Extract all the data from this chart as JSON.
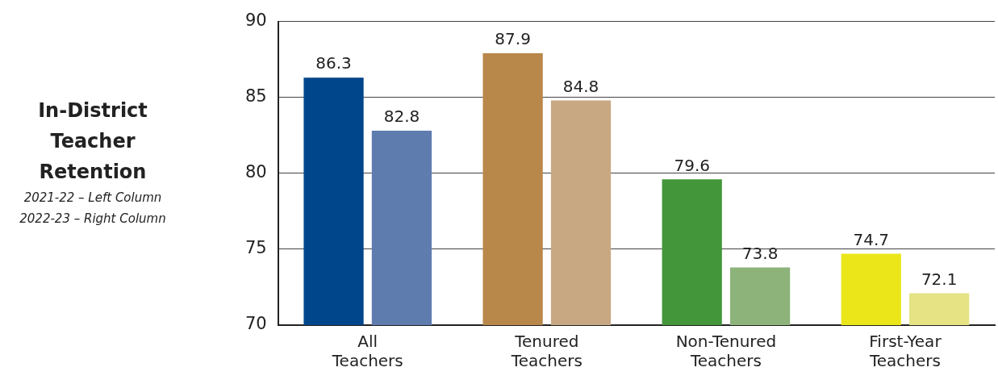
{
  "chart_data": {
    "type": "bar",
    "title": "In-District Teacher Retention",
    "annotations": [
      "2021-22 – Left Column",
      "2022-23 – Right Column"
    ],
    "categories": [
      "All Teachers",
      "Tenured Teachers",
      "Non-Tenured Teachers",
      "First-Year Teachers"
    ],
    "series": [
      {
        "colors": [
          "#00468b",
          "#b8874a",
          "#43973a",
          "#ebe61a"
        ],
        "values": [
          86.3,
          87.9,
          79.6,
          74.7
        ]
      },
      {
        "colors": [
          "#5f7caf",
          "#c8a883",
          "#8db37b",
          "#e5e383"
        ],
        "values": [
          82.8,
          84.8,
          73.8,
          72.1
        ]
      }
    ],
    "ylim": [
      70,
      90
    ],
    "yticks": [
      70,
      75,
      80,
      85,
      90
    ],
    "grid": "y",
    "data_labels": true,
    "legend": false
  }
}
